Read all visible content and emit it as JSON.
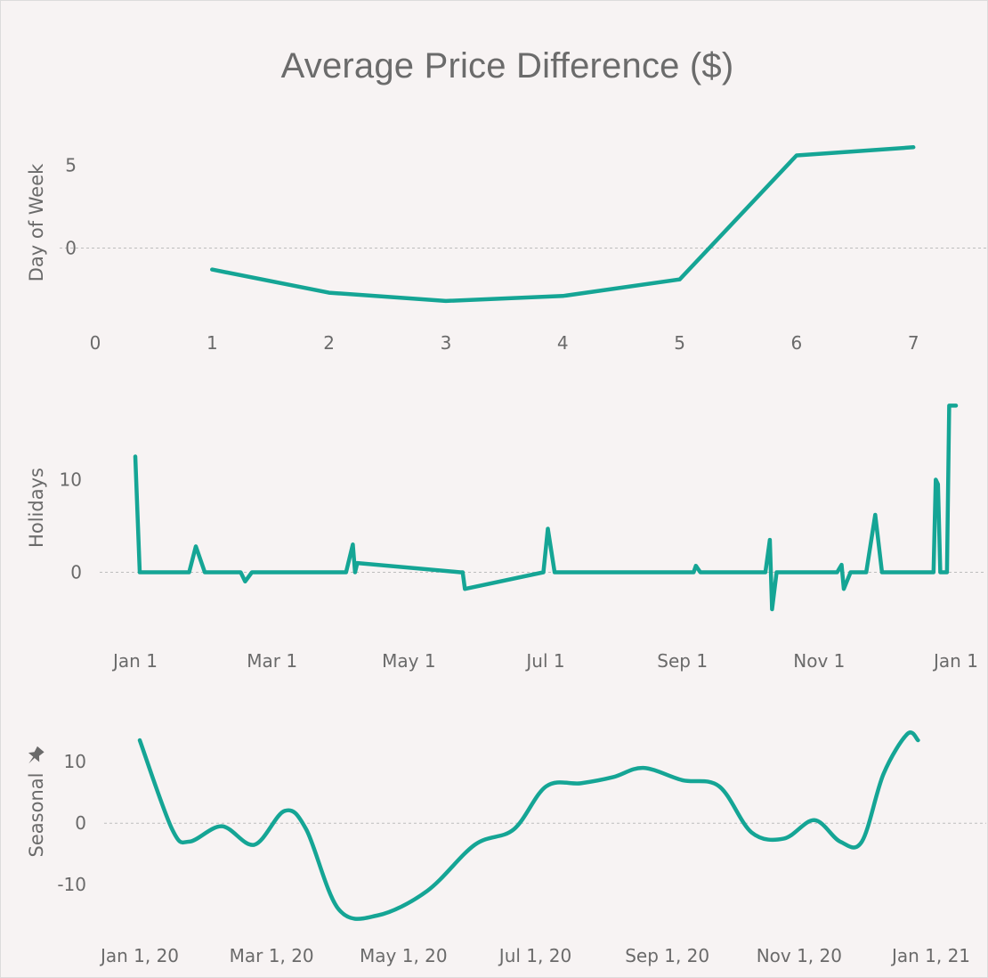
{
  "title": "Average Price Difference ($)",
  "colors": {
    "series": "#15a595",
    "text": "#6a6a6a",
    "zero_line": "#bdbdbd",
    "background": "#f7f3f3"
  },
  "icons": {
    "seasonal_pin": "pin-icon"
  },
  "chart_data": [
    {
      "type": "line",
      "ylabel": "Day of Week",
      "x_ticks": [
        "0",
        "1",
        "2",
        "3",
        "4",
        "5",
        "6",
        "7"
      ],
      "y_ticks": [
        "5",
        "0"
      ],
      "xlim": [
        0,
        7.6
      ],
      "ylim": [
        -4.5,
        8
      ],
      "x": [
        1,
        2,
        3,
        4,
        5,
        6,
        7
      ],
      "values": [
        -1.3,
        -2.7,
        -3.2,
        -2.9,
        -1.9,
        5.6,
        6.1
      ]
    },
    {
      "type": "line",
      "ylabel": "Holidays",
      "x_ticks": [
        "Jan 1",
        "Mar 1",
        "May 1",
        "Jul 1",
        "Sep 1",
        "Nov 1",
        "Jan 1"
      ],
      "y_ticks": [
        "10",
        "0"
      ],
      "xlim": [
        "2020-01-01",
        "2021-01-01"
      ],
      "ylim": [
        -6.5,
        19
      ],
      "x": [
        "2020-01-01",
        "2020-01-03",
        "2020-01-04",
        "2020-01-25",
        "2020-01-28",
        "2020-02-01",
        "2020-02-17",
        "2020-02-19",
        "2020-02-22",
        "2020-04-01",
        "2020-04-04",
        "2020-04-07",
        "2020-04-08",
        "2020-04-09",
        "2020-05-25",
        "2020-05-26",
        "2020-05-27",
        "2020-07-01",
        "2020-07-03",
        "2020-07-06",
        "2020-09-06",
        "2020-09-07",
        "2020-09-09",
        "2020-10-08",
        "2020-10-10",
        "2020-10-11",
        "2020-10-13",
        "2020-11-09",
        "2020-11-11",
        "2020-11-12",
        "2020-11-15",
        "2020-11-22",
        "2020-11-26",
        "2020-11-29",
        "2020-12-22",
        "2020-12-23",
        "2020-12-24",
        "2020-12-25",
        "2020-12-27",
        "2020-12-28",
        "2020-12-29",
        "2021-01-01"
      ],
      "values": [
        12.5,
        0,
        0,
        0,
        2.8,
        0,
        0,
        -1,
        0,
        0,
        0,
        3,
        0,
        1,
        0,
        0,
        -1.8,
        0,
        4.7,
        0,
        0,
        0.7,
        0,
        0,
        3.5,
        -4,
        0,
        0,
        0.8,
        -1.8,
        0,
        0,
        6.2,
        0,
        0,
        10,
        9.5,
        0,
        0,
        0,
        18,
        18
      ]
    },
    {
      "type": "line",
      "ylabel": "Seasonal",
      "x_ticks": [
        "Jan 1, 20",
        "Mar 1, 20",
        "May 1, 20",
        "Jul 1, 20",
        "Sep 1, 20",
        "Nov 1, 20",
        "Jan 1, 21"
      ],
      "y_ticks": [
        "10",
        "0",
        "-10"
      ],
      "xlim": [
        "2020-01-01",
        "2021-01-01"
      ],
      "ylim": [
        -17.5,
        18
      ],
      "x": [
        "2020-01-01",
        "2020-01-16",
        "2020-01-24",
        "2020-02-08",
        "2020-02-23",
        "2020-03-08",
        "2020-03-18",
        "2020-04-02",
        "2020-04-20",
        "2020-05-13",
        "2020-06-04",
        "2020-06-22",
        "2020-07-07",
        "2020-07-23",
        "2020-08-07",
        "2020-08-21",
        "2020-09-08",
        "2020-09-25",
        "2020-10-10",
        "2020-10-25",
        "2020-11-08",
        "2020-11-20",
        "2020-11-30",
        "2020-12-10",
        "2020-12-21",
        "2020-12-26"
      ],
      "values": [
        13.5,
        -1,
        -3,
        -0.5,
        -3.5,
        2,
        -1,
        -14,
        -15,
        -11,
        -3.5,
        -1,
        6,
        6.5,
        7.5,
        9,
        7,
        6,
        -1.5,
        -2.5,
        0.5,
        -3,
        -3,
        8,
        14.5,
        13.5
      ]
    }
  ]
}
